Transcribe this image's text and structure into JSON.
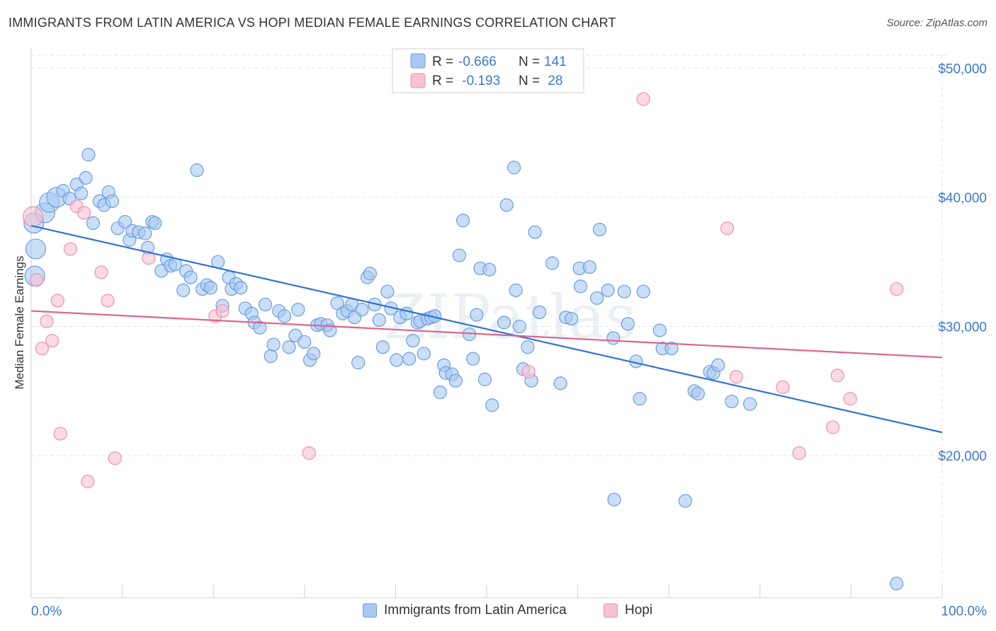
{
  "title": "IMMIGRANTS FROM LATIN AMERICA VS HOPI MEDIAN FEMALE EARNINGS CORRELATION CHART",
  "source": "Source: ZipAtlas.com",
  "watermark": "ZIPatlas",
  "colors": {
    "blue_fill": "#a7c8f2",
    "blue_stroke": "#6a9ee0",
    "blue_line": "#2e74d4",
    "pink_fill": "#f7c1d1",
    "pink_stroke": "#ec92ae",
    "pink_line": "#e0628c",
    "axis_label_color": "#3b78d0"
  },
  "legend": {
    "rows": [
      {
        "r_label": "R = ",
        "r_value": "-0.666",
        "n_label": "N = ",
        "n_value": "141",
        "series": "blue"
      },
      {
        "r_label": "R = ",
        "r_value": " -0.193",
        "n_label": "N = ",
        "n_value": " 28",
        "series": "pink"
      }
    ]
  },
  "bottom_legend": [
    "Immigrants from Latin America",
    "Hopi"
  ],
  "chart_data": {
    "type": "scatter",
    "title": "IMMIGRANTS FROM LATIN AMERICA VS HOPI MEDIAN FEMALE EARNINGS CORRELATION CHART",
    "xlabel": "",
    "ylabel": "Median Female Earnings",
    "xlim": [
      0,
      100
    ],
    "ylim": [
      9000,
      51000
    ],
    "x_tick_labels": [
      "0.0%",
      "100.0%"
    ],
    "y_ticks": [
      20000,
      30000,
      40000,
      50000
    ],
    "y_tick_labels": [
      "$20,000",
      "$30,000",
      "$40,000",
      "$50,000"
    ],
    "grid": true,
    "legend_position": "top-center",
    "series": [
      {
        "name": "Immigrants from Latin America",
        "color": "blue",
        "r": -0.666,
        "n": 141,
        "trend": {
          "x": [
            0,
            100
          ],
          "y": [
            37800,
            21800
          ]
        },
        "points": [
          [
            0.3,
            38000,
            2
          ],
          [
            0.5,
            36000,
            2
          ],
          [
            0.4,
            33900,
            2
          ],
          [
            1.5,
            38800,
            2
          ],
          [
            2.0,
            39600,
            2
          ],
          [
            2.8,
            40000,
            2
          ],
          [
            3.5,
            40500,
            1
          ],
          [
            4.2,
            39900,
            1
          ],
          [
            5.0,
            41000,
            1
          ],
          [
            5.5,
            40300,
            1
          ],
          [
            6.0,
            41500,
            1
          ],
          [
            6.3,
            43300,
            1
          ],
          [
            6.8,
            38000,
            1
          ],
          [
            7.5,
            39700,
            1
          ],
          [
            8.0,
            39400,
            1
          ],
          [
            8.5,
            40400,
            1
          ],
          [
            8.9,
            39700,
            1
          ],
          [
            9.5,
            37600,
            1
          ],
          [
            10.3,
            38100,
            1
          ],
          [
            10.8,
            36700,
            1
          ],
          [
            11.1,
            37400,
            1
          ],
          [
            11.8,
            37300,
            1
          ],
          [
            12.5,
            37200,
            1
          ],
          [
            12.8,
            36100,
            1
          ],
          [
            13.3,
            38100,
            1
          ],
          [
            13.6,
            38000,
            1
          ],
          [
            14.3,
            34300,
            1
          ],
          [
            14.9,
            35200,
            1
          ],
          [
            15.3,
            34700,
            1
          ],
          [
            15.8,
            34800,
            1
          ],
          [
            16.7,
            32800,
            1
          ],
          [
            17.0,
            34300,
            1
          ],
          [
            17.5,
            33800,
            1
          ],
          [
            18.2,
            42100,
            1
          ],
          [
            18.8,
            32900,
            1
          ],
          [
            19.3,
            33200,
            1
          ],
          [
            19.7,
            33000,
            1
          ],
          [
            20.5,
            35000,
            1
          ],
          [
            21.0,
            31600,
            1
          ],
          [
            21.7,
            33800,
            1
          ],
          [
            22.0,
            32900,
            1
          ],
          [
            22.5,
            33300,
            1
          ],
          [
            23.0,
            33000,
            1
          ],
          [
            23.5,
            31400,
            1
          ],
          [
            24.2,
            31000,
            1
          ],
          [
            24.5,
            30300,
            1
          ],
          [
            25.1,
            29900,
            1
          ],
          [
            25.7,
            31700,
            1
          ],
          [
            26.3,
            27700,
            1
          ],
          [
            26.6,
            28600,
            1
          ],
          [
            27.2,
            31200,
            1
          ],
          [
            27.8,
            30800,
            1
          ],
          [
            28.3,
            28400,
            1
          ],
          [
            29.0,
            29300,
            1
          ],
          [
            29.3,
            31300,
            1
          ],
          [
            30.0,
            28800,
            1
          ],
          [
            30.6,
            27400,
            1
          ],
          [
            31.0,
            27900,
            1
          ],
          [
            31.4,
            30100,
            1
          ],
          [
            31.8,
            30200,
            1
          ],
          [
            32.5,
            30100,
            1
          ],
          [
            32.8,
            29700,
            1
          ],
          [
            33.6,
            31800,
            1
          ],
          [
            34.2,
            31000,
            1
          ],
          [
            34.7,
            31200,
            1
          ],
          [
            35.2,
            31700,
            1
          ],
          [
            35.5,
            30700,
            1
          ],
          [
            35.9,
            27200,
            1
          ],
          [
            36.3,
            31300,
            1
          ],
          [
            36.9,
            33800,
            1
          ],
          [
            37.2,
            34100,
            1
          ],
          [
            37.7,
            31700,
            1
          ],
          [
            38.2,
            30500,
            1
          ],
          [
            38.6,
            28400,
            1
          ],
          [
            39.1,
            32700,
            1
          ],
          [
            39.5,
            31400,
            1
          ],
          [
            40.1,
            27400,
            1
          ],
          [
            40.5,
            30700,
            1
          ],
          [
            41.2,
            31000,
            1
          ],
          [
            41.5,
            27500,
            1
          ],
          [
            41.9,
            28900,
            1
          ],
          [
            42.4,
            30300,
            1
          ],
          [
            42.7,
            30400,
            1
          ],
          [
            43.1,
            27900,
            1
          ],
          [
            43.5,
            30600,
            1
          ],
          [
            43.9,
            30700,
            1
          ],
          [
            44.3,
            30800,
            1
          ],
          [
            44.9,
            24900,
            1
          ],
          [
            45.3,
            27000,
            1
          ],
          [
            45.5,
            26400,
            1
          ],
          [
            46.2,
            26300,
            1
          ],
          [
            46.6,
            25800,
            1
          ],
          [
            47.0,
            35500,
            1
          ],
          [
            47.4,
            38200,
            1
          ],
          [
            48.1,
            29400,
            1
          ],
          [
            48.5,
            27500,
            1
          ],
          [
            48.9,
            30900,
            1
          ],
          [
            49.3,
            34500,
            1
          ],
          [
            49.8,
            25900,
            1
          ],
          [
            50.3,
            34400,
            1
          ],
          [
            50.6,
            23900,
            1
          ],
          [
            51.9,
            30300,
            1
          ],
          [
            52.2,
            39400,
            1
          ],
          [
            53.0,
            42300,
            1
          ],
          [
            53.2,
            32800,
            1
          ],
          [
            53.6,
            30000,
            1
          ],
          [
            54.0,
            26700,
            1
          ],
          [
            54.5,
            28400,
            1
          ],
          [
            54.9,
            25800,
            1
          ],
          [
            55.3,
            37300,
            1
          ],
          [
            55.8,
            31100,
            1
          ],
          [
            57.2,
            34900,
            1
          ],
          [
            58.1,
            25600,
            1
          ],
          [
            58.7,
            30700,
            1
          ],
          [
            59.3,
            30600,
            1
          ],
          [
            60.2,
            34500,
            1
          ],
          [
            60.3,
            33100,
            1
          ],
          [
            61.3,
            34600,
            1
          ],
          [
            62.1,
            32200,
            1
          ],
          [
            62.4,
            37500,
            1
          ],
          [
            63.3,
            32800,
            1
          ],
          [
            63.9,
            29100,
            1
          ],
          [
            65.1,
            32700,
            1
          ],
          [
            65.5,
            30200,
            1
          ],
          [
            66.4,
            27300,
            1
          ],
          [
            66.8,
            24400,
            1
          ],
          [
            67.2,
            32700,
            1
          ],
          [
            69.0,
            29700,
            1
          ],
          [
            69.3,
            28300,
            1
          ],
          [
            70.3,
            28300,
            1
          ],
          [
            72.8,
            25000,
            1
          ],
          [
            73.2,
            24800,
            1
          ],
          [
            74.5,
            26500,
            1
          ],
          [
            74.9,
            26400,
            1
          ],
          [
            75.4,
            27000,
            1
          ],
          [
            76.9,
            24200,
            1
          ],
          [
            78.9,
            24000,
            1
          ],
          [
            95.0,
            10100,
            1
          ],
          [
            64.0,
            16600,
            1
          ],
          [
            71.8,
            16500,
            1
          ]
        ]
      },
      {
        "name": "Hopi",
        "color": "pink",
        "r": -0.193,
        "n": 28,
        "trend": {
          "x": [
            0,
            100
          ],
          "y": [
            31200,
            27600
          ]
        },
        "points": [
          [
            0.2,
            38500,
            2
          ],
          [
            0.6,
            33600,
            1
          ],
          [
            1.2,
            28300,
            1
          ],
          [
            1.7,
            30400,
            1
          ],
          [
            2.3,
            28900,
            1
          ],
          [
            2.9,
            32000,
            1
          ],
          [
            3.2,
            21700,
            1
          ],
          [
            4.3,
            36000,
            1
          ],
          [
            5.0,
            39300,
            1
          ],
          [
            5.8,
            38800,
            1
          ],
          [
            6.2,
            18000,
            1
          ],
          [
            7.7,
            34200,
            1
          ],
          [
            8.4,
            32000,
            1
          ],
          [
            9.2,
            19800,
            1
          ],
          [
            12.9,
            35300,
            1
          ],
          [
            20.2,
            30800,
            1
          ],
          [
            21.0,
            31200,
            1
          ],
          [
            30.5,
            20200,
            1
          ],
          [
            54.6,
            26500,
            1
          ],
          [
            67.2,
            47600,
            1
          ],
          [
            76.4,
            37600,
            1
          ],
          [
            77.4,
            26100,
            1
          ],
          [
            82.5,
            25300,
            1
          ],
          [
            84.3,
            20200,
            1
          ],
          [
            88.0,
            22200,
            1
          ],
          [
            88.5,
            26200,
            1
          ],
          [
            89.9,
            24400,
            1
          ],
          [
            95.0,
            32900,
            1
          ]
        ]
      }
    ]
  }
}
